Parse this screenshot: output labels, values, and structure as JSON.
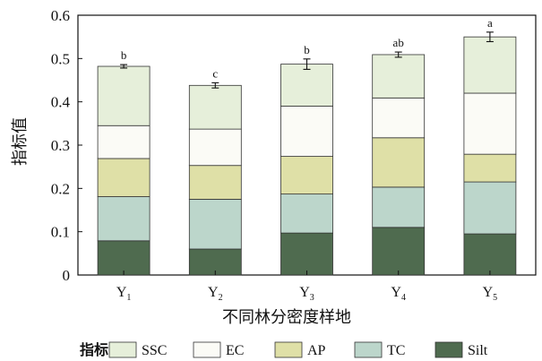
{
  "chart_data": {
    "type": "bar",
    "stacked": true,
    "ylabel": "指标值",
    "xlabel": "不同林分密度样地",
    "ylim": [
      0,
      0.6
    ],
    "yticks": [
      "0",
      "0.1",
      "0.2",
      "0.3",
      "0.4",
      "0.5",
      "0.6"
    ],
    "categories": [
      {
        "base": "Y",
        "sub": "1"
      },
      {
        "base": "Y",
        "sub": "2"
      },
      {
        "base": "Y",
        "sub": "3"
      },
      {
        "base": "Y",
        "sub": "4"
      },
      {
        "base": "Y",
        "sub": "5"
      }
    ],
    "series": [
      {
        "name": "Silt",
        "color": "#4f6b4f",
        "values": [
          0.079,
          0.06,
          0.097,
          0.11,
          0.095
        ]
      },
      {
        "name": "TC",
        "color": "#bcd6cb",
        "values": [
          0.102,
          0.115,
          0.09,
          0.093,
          0.12
        ]
      },
      {
        "name": "AP",
        "color": "#dfe0a7",
        "values": [
          0.088,
          0.078,
          0.087,
          0.114,
          0.064
        ]
      },
      {
        "name": "EC",
        "color": "#fbfbf6",
        "values": [
          0.076,
          0.084,
          0.116,
          0.092,
          0.141
        ]
      },
      {
        "name": "SSC",
        "color": "#e6efda",
        "values": [
          0.137,
          0.101,
          0.097,
          0.1,
          0.13
        ]
      }
    ],
    "totals": [
      0.482,
      0.438,
      0.487,
      0.509,
      0.55
    ],
    "errors": [
      0.004,
      0.006,
      0.012,
      0.006,
      0.011
    ],
    "significance": [
      "b",
      "c",
      "b",
      "ab",
      "a"
    ],
    "legend": {
      "title": "指标",
      "order": [
        "SSC",
        "EC",
        "AP",
        "TC",
        "Silt"
      ],
      "placement": "bottom"
    },
    "grid": false
  }
}
